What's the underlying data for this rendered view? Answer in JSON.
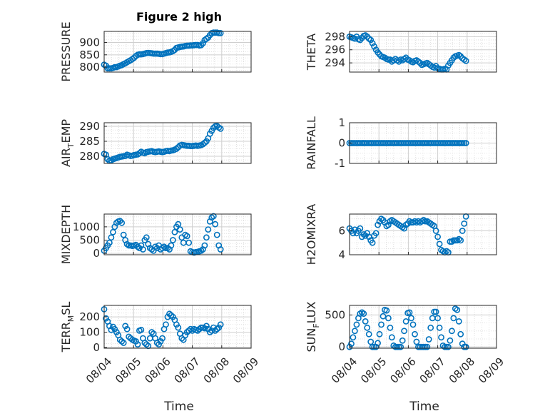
{
  "figure": {
    "title": "Figure 2 high"
  },
  "chart_data": [
    {
      "type": "scatter",
      "id": "pressure",
      "ylabel": "PRESSURE",
      "title": "Figure 2 high",
      "xlim": [
        0,
        5
      ],
      "ylim": [
        780,
        945
      ],
      "yticks": [
        800,
        850,
        900
      ],
      "x": [
        0.0,
        0.06,
        0.12,
        0.18,
        0.24,
        0.3,
        0.36,
        0.42,
        0.48,
        0.54,
        0.6,
        0.66,
        0.72,
        0.78,
        0.84,
        0.9,
        0.96,
        1.02,
        1.08,
        1.14,
        1.2,
        1.26,
        1.32,
        1.38,
        1.44,
        1.5,
        1.56,
        1.62,
        1.68,
        1.74,
        1.8,
        1.86,
        1.92,
        1.98,
        2.04,
        2.1,
        2.16,
        2.22,
        2.28,
        2.34,
        2.4,
        2.46,
        2.52,
        2.58,
        2.64,
        2.7,
        2.76,
        2.82,
        2.88,
        2.94,
        3.0,
        3.06,
        3.12,
        3.18,
        3.24,
        3.3,
        3.36,
        3.42,
        3.48,
        3.54,
        3.6,
        3.66,
        3.72,
        3.78,
        3.84,
        3.9,
        3.96
      ],
      "y": [
        810,
        806,
        795,
        795,
        795,
        797,
        800,
        800,
        803,
        806,
        808,
        812,
        816,
        820,
        824,
        828,
        833,
        838,
        845,
        850,
        852,
        852,
        853,
        855,
        857,
        858,
        857,
        856,
        855,
        855,
        855,
        854,
        853,
        853,
        855,
        857,
        859,
        860,
        862,
        865,
        870,
        878,
        880,
        882,
        883,
        884,
        886,
        887,
        887,
        888,
        888,
        889,
        890,
        890,
        888,
        889,
        897,
        910,
        915,
        920,
        930,
        938,
        940,
        940,
        940,
        938,
        938
      ]
    },
    {
      "type": "scatter",
      "id": "theta",
      "ylabel": "THETA",
      "xlim": [
        0,
        5
      ],
      "ylim": [
        292.6,
        298.8
      ],
      "yticks": [
        294,
        296,
        298
      ],
      "x": [
        0.0,
        0.06,
        0.12,
        0.18,
        0.24,
        0.3,
        0.36,
        0.42,
        0.48,
        0.54,
        0.6,
        0.66,
        0.72,
        0.78,
        0.84,
        0.9,
        0.96,
        1.02,
        1.08,
        1.14,
        1.2,
        1.26,
        1.32,
        1.38,
        1.44,
        1.5,
        1.56,
        1.62,
        1.68,
        1.74,
        1.8,
        1.86,
        1.92,
        1.98,
        2.04,
        2.1,
        2.16,
        2.22,
        2.28,
        2.34,
        2.4,
        2.46,
        2.52,
        2.58,
        2.64,
        2.7,
        2.76,
        2.82,
        2.88,
        2.94,
        3.0,
        3.06,
        3.12,
        3.18,
        3.24,
        3.3,
        3.36,
        3.42,
        3.48,
        3.54,
        3.6,
        3.66,
        3.72,
        3.78,
        3.84,
        3.9,
        3.96
      ],
      "y": [
        298.0,
        297.9,
        297.8,
        297.7,
        298.0,
        297.6,
        297.5,
        297.8,
        298.1,
        298.2,
        298.0,
        297.7,
        297.5,
        297.0,
        296.5,
        296.0,
        295.6,
        295.3,
        295.0,
        294.9,
        294.8,
        294.6,
        294.5,
        294.5,
        294.2,
        294.4,
        294.6,
        294.4,
        294.2,
        294.5,
        294.4,
        294.6,
        294.8,
        294.5,
        294.4,
        294.2,
        294.1,
        294.3,
        294.4,
        294.2,
        294.0,
        293.7,
        293.8,
        293.9,
        294.0,
        293.8,
        293.6,
        293.4,
        293.3,
        293.5,
        293.2,
        293.1,
        293.0,
        293.0,
        293.1,
        293.0,
        293.6,
        294.0,
        294.4,
        294.8,
        295.0,
        295.1,
        295.2,
        295.0,
        294.7,
        294.5,
        294.3
      ]
    },
    {
      "type": "scatter",
      "id": "air_temp",
      "ylabel": "AIR_TEMP",
      "ylabel_text": "AIR",
      "ylabel_sub": "T",
      "ylabel_rest": "EMP",
      "xlim": [
        0,
        5
      ],
      "ylim": [
        277.6,
        291.2
      ],
      "yticks": [
        280,
        285,
        290
      ],
      "x": [
        0.0,
        0.06,
        0.12,
        0.18,
        0.24,
        0.3,
        0.36,
        0.42,
        0.48,
        0.54,
        0.6,
        0.66,
        0.72,
        0.78,
        0.84,
        0.9,
        0.96,
        1.02,
        1.08,
        1.14,
        1.2,
        1.26,
        1.32,
        1.38,
        1.44,
        1.5,
        1.56,
        1.62,
        1.68,
        1.74,
        1.8,
        1.86,
        1.92,
        1.98,
        2.04,
        2.1,
        2.16,
        2.22,
        2.28,
        2.34,
        2.4,
        2.46,
        2.52,
        2.58,
        2.64,
        2.7,
        2.76,
        2.82,
        2.88,
        2.94,
        3.0,
        3.06,
        3.12,
        3.18,
        3.24,
        3.3,
        3.36,
        3.42,
        3.48,
        3.54,
        3.6,
        3.66,
        3.72,
        3.78,
        3.84,
        3.9,
        3.96
      ],
      "y": [
        280.8,
        280.5,
        279.0,
        278.5,
        278.6,
        279.0,
        279.2,
        279.4,
        279.6,
        279.8,
        279.9,
        280.0,
        280.1,
        280.5,
        280.3,
        280.1,
        280.2,
        280.4,
        280.5,
        280.6,
        281.0,
        281.5,
        281.2,
        281.0,
        281.4,
        281.5,
        281.6,
        281.7,
        281.5,
        281.4,
        281.5,
        281.6,
        281.5,
        281.4,
        281.5,
        281.7,
        281.8,
        281.7,
        281.9,
        282.0,
        282.2,
        282.5,
        283.0,
        283.6,
        283.8,
        283.7,
        283.6,
        283.5,
        283.5,
        283.4,
        283.4,
        283.5,
        283.6,
        283.5,
        283.6,
        283.7,
        284.0,
        284.5,
        285.0,
        286.0,
        287.5,
        288.5,
        289.5,
        290.0,
        290.1,
        289.6,
        289.2
      ]
    },
    {
      "type": "scatter",
      "id": "rainfall",
      "ylabel": "RAINFALL",
      "xlim": [
        0,
        5
      ],
      "ylim": [
        -1,
        1
      ],
      "yticks": [
        -1,
        0,
        1
      ],
      "x": [
        0.0,
        0.06,
        0.12,
        0.18,
        0.24,
        0.3,
        0.36,
        0.42,
        0.48,
        0.54,
        0.6,
        0.66,
        0.72,
        0.78,
        0.84,
        0.9,
        0.96,
        1.02,
        1.08,
        1.14,
        1.2,
        1.26,
        1.32,
        1.38,
        1.44,
        1.5,
        1.56,
        1.62,
        1.68,
        1.74,
        1.8,
        1.86,
        1.92,
        1.98,
        2.04,
        2.1,
        2.16,
        2.22,
        2.28,
        2.34,
        2.4,
        2.46,
        2.52,
        2.58,
        2.64,
        2.7,
        2.76,
        2.82,
        2.88,
        2.94,
        3.0,
        3.06,
        3.12,
        3.18,
        3.24,
        3.3,
        3.36,
        3.42,
        3.48,
        3.54,
        3.6,
        3.66,
        3.72,
        3.78,
        3.84,
        3.9,
        3.96
      ],
      "y": [
        0,
        0,
        0,
        0,
        0,
        0,
        0,
        0,
        0,
        0,
        0,
        0,
        0,
        0,
        0,
        0,
        0,
        0,
        0,
        0,
        0,
        0,
        0,
        0,
        0,
        0,
        0,
        0,
        0,
        0,
        0,
        0,
        0,
        0,
        0,
        0,
        0,
        0,
        0,
        0,
        0,
        0,
        0,
        0,
        0,
        0,
        0,
        0,
        0,
        0,
        0,
        0,
        0,
        0,
        0,
        0,
        0,
        0,
        0,
        0,
        0,
        0,
        0,
        0,
        0,
        0,
        0
      ]
    },
    {
      "type": "scatter",
      "id": "mixdepth",
      "ylabel": "MIXDEPTH",
      "xlim": [
        0,
        5
      ],
      "ylim": [
        -50,
        1480
      ],
      "yticks": [
        0,
        500,
        1000
      ],
      "x": [
        0.0,
        0.06,
        0.12,
        0.18,
        0.24,
        0.3,
        0.36,
        0.42,
        0.48,
        0.54,
        0.6,
        0.66,
        0.72,
        0.78,
        0.84,
        0.9,
        0.96,
        1.02,
        1.08,
        1.14,
        1.2,
        1.26,
        1.32,
        1.38,
        1.44,
        1.5,
        1.56,
        1.62,
        1.68,
        1.74,
        1.8,
        1.86,
        1.92,
        1.98,
        2.04,
        2.1,
        2.16,
        2.22,
        2.28,
        2.34,
        2.4,
        2.46,
        2.52,
        2.58,
        2.64,
        2.7,
        2.76,
        2.82,
        2.88,
        2.94,
        3.0,
        3.06,
        3.12,
        3.18,
        3.24,
        3.3,
        3.36,
        3.42,
        3.48,
        3.54,
        3.6,
        3.66,
        3.72,
        3.78,
        3.84,
        3.9,
        3.96
      ],
      "y": [
        100,
        200,
        300,
        400,
        600,
        800,
        1000,
        1150,
        1200,
        1220,
        1150,
        700,
        500,
        350,
        300,
        300,
        280,
        300,
        320,
        250,
        200,
        300,
        150,
        500,
        600,
        350,
        200,
        150,
        100,
        250,
        200,
        300,
        150,
        200,
        250,
        200,
        200,
        150,
        300,
        500,
        800,
        1000,
        1100,
        900,
        600,
        400,
        700,
        650,
        400,
        80,
        50,
        30,
        50,
        60,
        80,
        100,
        150,
        300,
        600,
        900,
        1200,
        1350,
        1400,
        1100,
        700,
        300,
        150
      ]
    },
    {
      "type": "scatter",
      "id": "h2omixra",
      "ylabel": "H2OMIXRA",
      "xlim": [
        0,
        5
      ],
      "ylim": [
        4,
        7.4
      ],
      "yticks": [
        4,
        6
      ],
      "x": [
        0.0,
        0.06,
        0.12,
        0.18,
        0.24,
        0.3,
        0.36,
        0.42,
        0.48,
        0.54,
        0.6,
        0.66,
        0.72,
        0.78,
        0.84,
        0.9,
        0.96,
        1.02,
        1.08,
        1.14,
        1.2,
        1.26,
        1.32,
        1.38,
        1.44,
        1.5,
        1.56,
        1.62,
        1.68,
        1.74,
        1.8,
        1.86,
        1.92,
        1.98,
        2.04,
        2.1,
        2.16,
        2.22,
        2.28,
        2.34,
        2.4,
        2.46,
        2.52,
        2.58,
        2.64,
        2.7,
        2.76,
        2.82,
        2.88,
        2.94,
        3.0,
        3.06,
        3.12,
        3.18,
        3.24,
        3.3,
        3.36,
        3.42,
        3.48,
        3.54,
        3.6,
        3.66,
        3.72,
        3.78,
        3.84,
        3.9,
        3.96
      ],
      "y": [
        6.2,
        6.0,
        5.8,
        6.1,
        5.8,
        6.0,
        6.2,
        5.5,
        5.7,
        5.6,
        5.8,
        5.5,
        5.2,
        5.0,
        5.6,
        5.8,
        6.5,
        6.8,
        7.0,
        6.9,
        6.7,
        6.4,
        6.5,
        6.8,
        6.9,
        6.8,
        6.7,
        6.6,
        6.5,
        6.4,
        6.3,
        6.2,
        6.5,
        6.6,
        6.8,
        6.7,
        6.7,
        6.8,
        6.7,
        6.8,
        6.7,
        6.8,
        6.9,
        6.8,
        6.8,
        6.7,
        6.6,
        6.5,
        6.4,
        6.0,
        5.5,
        4.9,
        4.4,
        4.3,
        4.2,
        4.3,
        4.2,
        5.1,
        5.1,
        5.2,
        5.2,
        5.2,
        5.3,
        5.2,
        6.0,
        6.6,
        7.2
      ]
    },
    {
      "type": "scatter",
      "id": "terr_msl",
      "ylabel": "TERR_MSL",
      "ylabel_text": "TERR",
      "ylabel_sub": "M",
      "ylabel_rest": "SL",
      "xlim": [
        0,
        5
      ],
      "ylim": [
        -5,
        275
      ],
      "yticks": [
        0,
        100,
        200
      ],
      "x": [
        0.0,
        0.06,
        0.12,
        0.18,
        0.24,
        0.3,
        0.36,
        0.42,
        0.48,
        0.54,
        0.6,
        0.66,
        0.72,
        0.78,
        0.84,
        0.9,
        0.96,
        1.02,
        1.08,
        1.14,
        1.2,
        1.26,
        1.32,
        1.38,
        1.44,
        1.5,
        1.56,
        1.62,
        1.68,
        1.74,
        1.8,
        1.86,
        1.92,
        1.98,
        2.04,
        2.1,
        2.16,
        2.22,
        2.28,
        2.34,
        2.4,
        2.46,
        2.52,
        2.58,
        2.64,
        2.7,
        2.76,
        2.82,
        2.88,
        2.94,
        3.0,
        3.06,
        3.12,
        3.18,
        3.24,
        3.3,
        3.36,
        3.42,
        3.48,
        3.54,
        3.6,
        3.66,
        3.72,
        3.78,
        3.84,
        3.9,
        3.96
      ],
      "y": [
        250,
        190,
        170,
        140,
        115,
        135,
        120,
        100,
        80,
        50,
        40,
        30,
        140,
        120,
        70,
        60,
        50,
        45,
        40,
        20,
        110,
        115,
        60,
        30,
        20,
        10,
        60,
        100,
        90,
        60,
        30,
        20,
        40,
        60,
        120,
        150,
        200,
        220,
        210,
        200,
        180,
        150,
        130,
        90,
        60,
        50,
        80,
        100,
        110,
        120,
        110,
        120,
        115,
        110,
        120,
        130,
        130,
        125,
        140,
        120,
        100,
        110,
        130,
        110,
        120,
        130,
        150
      ]
    },
    {
      "type": "scatter",
      "id": "sun_flux",
      "ylabel": "SUN_FLUX",
      "ylabel_text": "SUN",
      "ylabel_sub": "F",
      "ylabel_rest": "LUX",
      "xlim": [
        0,
        5
      ],
      "ylim": [
        -20,
        650
      ],
      "yticks": [
        0,
        500
      ],
      "x": [
        0.0,
        0.06,
        0.12,
        0.18,
        0.24,
        0.3,
        0.36,
        0.42,
        0.48,
        0.54,
        0.6,
        0.66,
        0.72,
        0.78,
        0.84,
        0.9,
        0.96,
        1.02,
        1.08,
        1.14,
        1.2,
        1.26,
        1.32,
        1.38,
        1.44,
        1.5,
        1.56,
        1.62,
        1.68,
        1.74,
        1.8,
        1.86,
        1.92,
        1.98,
        2.04,
        2.1,
        2.16,
        2.22,
        2.28,
        2.34,
        2.4,
        2.46,
        2.52,
        2.58,
        2.64,
        2.7,
        2.76,
        2.82,
        2.88,
        2.94,
        3.0,
        3.06,
        3.12,
        3.18,
        3.24,
        3.3,
        3.36,
        3.42,
        3.48,
        3.54,
        3.6,
        3.66,
        3.72,
        3.78,
        3.84,
        3.9,
        3.96
      ],
      "y": [
        0,
        50,
        150,
        250,
        350,
        450,
        520,
        540,
        520,
        400,
        300,
        200,
        80,
        0,
        0,
        0,
        60,
        200,
        350,
        480,
        580,
        570,
        450,
        300,
        150,
        20,
        0,
        0,
        0,
        0,
        100,
        250,
        400,
        530,
        540,
        450,
        350,
        200,
        80,
        0,
        0,
        0,
        0,
        0,
        0,
        120,
        300,
        450,
        550,
        550,
        450,
        300,
        150,
        20,
        0,
        0,
        0,
        100,
        250,
        450,
        600,
        580,
        400,
        200,
        50,
        0,
        0
      ]
    }
  ],
  "shared_axes": {
    "xticks": [
      0,
      1,
      2,
      3,
      4,
      5
    ],
    "xtick_labels": [
      "08/04",
      "08/05",
      "08/06",
      "08/07",
      "08/08",
      "08/09"
    ],
    "xlabel": "Time"
  },
  "colors": {
    "marker": "#0072BD",
    "grid": "#d9d9d9",
    "axis": "#262626"
  }
}
